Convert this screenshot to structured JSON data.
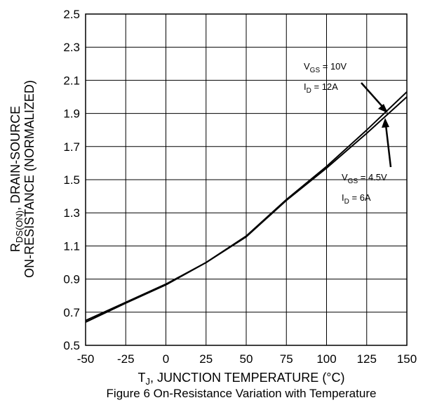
{
  "chart_data": {
    "type": "line",
    "xlabel": {
      "prefix": "T",
      "sub": "J",
      "rest": ", JUNCTION TEMPERATURE (°C)"
    },
    "ylabel": {
      "line1_prefix": "R",
      "line1_sub": "DS(ON)",
      "line1_rest": ", DRAIN-SOURCE",
      "line2": "ON-RESISTANCE (NORMALIZED)"
    },
    "caption": "Figure 6 On-Resistance Variation with Temperature",
    "xlim": [
      -50,
      150
    ],
    "ylim": [
      0.5,
      2.5
    ],
    "xticks": [
      -50,
      -25,
      0,
      25,
      50,
      75,
      100,
      125,
      150
    ],
    "yticks": [
      0.5,
      0.7,
      0.9,
      1.1,
      1.3,
      1.5,
      1.7,
      1.9,
      2.1,
      2.3,
      2.5
    ],
    "xtick_labels": [
      "-50",
      "-25",
      "0",
      "25",
      "50",
      "75",
      "100",
      "125",
      "150"
    ],
    "ytick_labels": [
      "0.5",
      "0.7",
      "0.9",
      "1.1",
      "1.3",
      "1.5",
      "1.7",
      "1.9",
      "2.1",
      "2.3",
      "2.5"
    ],
    "grid": true,
    "series": [
      {
        "x": [
          -50,
          -25,
          0,
          25,
          50,
          75,
          100,
          125,
          150
        ],
        "y": [
          0.65,
          0.76,
          0.87,
          1.0,
          1.16,
          1.38,
          1.58,
          1.8,
          2.03
        ],
        "annotation": {
          "vgs": "10V",
          "id": "12A"
        }
      },
      {
        "x": [
          -50,
          -25,
          0,
          25,
          50,
          75,
          100,
          125,
          150
        ],
        "y": [
          0.64,
          0.755,
          0.865,
          1.0,
          1.155,
          1.375,
          1.57,
          1.78,
          2.0
        ],
        "annotation": {
          "vgs": "4.5V",
          "id": "6A"
        }
      }
    ]
  }
}
